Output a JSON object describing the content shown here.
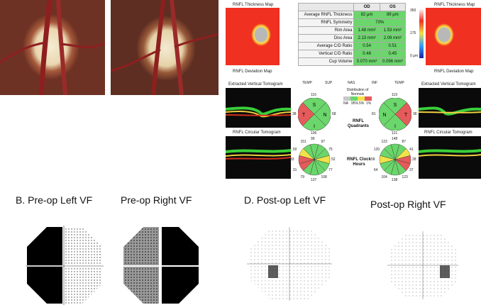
{
  "figure_labels": {
    "b_left": "B. Pre-op Left VF",
    "b_right": "Pre-op Right VF",
    "d_left": "D. Post-op Left VF",
    "d_right": "Post-op Right VF"
  },
  "report": {
    "map_title": "RNFL Thickness Map",
    "deviation_title": "RNFL Deviation Map",
    "scale_max": "350",
    "scale_mid": "175",
    "scale_min": "0 μm",
    "col_od": "OD",
    "col_os": "OS",
    "rows": [
      {
        "label": "Average RNFL Thickness",
        "od": "82 μm",
        "os": "89 μm"
      },
      {
        "label": "RNFL Symmetry",
        "od": "70%",
        "os": ""
      },
      {
        "label": "Rim Area",
        "od": "1.48 mm²",
        "os": "1.53 mm²"
      },
      {
        "label": "Disc Area",
        "od": "2.13 mm²",
        "os": "2.09 mm²"
      },
      {
        "label": "Average C/D Ratio",
        "od": "0.54",
        "os": "0.51"
      },
      {
        "label": "Vertical C/D Ratio",
        "od": "0.48",
        "os": "0.45"
      },
      {
        "label": "Cup Volume",
        "od": "0.070 mm³",
        "os": "0.096 mm³"
      }
    ],
    "vertical_tomogram": "Extracted Vertical Tomogram",
    "circular_tomogram": "RNFL Circular Tomogram",
    "axis_od": [
      "TEMP",
      "SUP",
      "NAS",
      "INF",
      "TEMP"
    ],
    "legend_title": "Distribution of Normals",
    "legend_items": [
      "NA",
      "95%",
      "5%",
      "1%"
    ],
    "quadrants_label": "RNFL Quadrants",
    "clock_label": "RNFL Clock Hours",
    "quad_od": {
      "top": "116",
      "left": "38",
      "right": "68",
      "bottom": "106",
      "S": "S",
      "T": "T",
      "N": "N",
      "I": "I"
    },
    "quad_os": {
      "top": "119",
      "left": "81",
      "right": "36",
      "bottom": "121",
      "S": "S",
      "T": "T",
      "N": "N",
      "I": "I"
    },
    "clock_od": [
      "99",
      "97",
      "75",
      "52",
      "77",
      "108",
      "137",
      "79",
      "31",
      "33",
      "50",
      "151"
    ],
    "clock_os": [
      "148",
      "87",
      "41",
      "28",
      "37",
      "123",
      "138",
      "104",
      "64",
      "58",
      "120",
      "123"
    ]
  },
  "colors": {
    "green": "#6bd66b",
    "yellow": "#f2e24a",
    "red": "#e55a5a",
    "grey": "#c8c8c8"
  }
}
